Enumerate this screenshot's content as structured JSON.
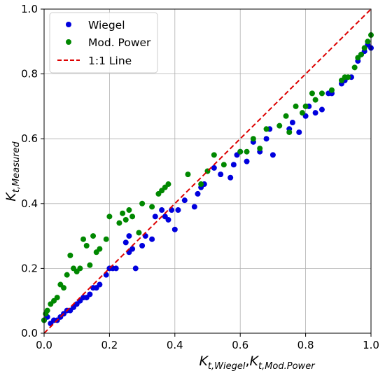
{
  "chart_data": {
    "type": "scatter",
    "title": "",
    "xlabel": {
      "parts": [
        {
          "main": "K",
          "sub": "t,Wiegel"
        },
        {
          "sep": ","
        },
        {
          "main": "K",
          "sub": "t,Mod.Power"
        }
      ]
    },
    "ylabel": {
      "main": "K",
      "sub": "t,Measured"
    },
    "xlim": [
      0,
      1
    ],
    "ylim": [
      0,
      1
    ],
    "xticks": [
      "0.0",
      "0.2",
      "0.4",
      "0.6",
      "0.8",
      "1.0"
    ],
    "yticks": [
      "0.0",
      "0.2",
      "0.4",
      "0.6",
      "0.8",
      "1.0"
    ],
    "grid": true,
    "legend": {
      "placement": "top-left",
      "entries": [
        {
          "label": "Wiegel",
          "series": 0
        },
        {
          "label": "Mod. Power",
          "series": 1
        },
        {
          "label": "1:1 Line",
          "series": 2
        }
      ]
    },
    "series": [
      {
        "name": "Wiegel",
        "kind": "scatter",
        "color": "#0000dd",
        "points": [
          [
            0.0,
            0.04
          ],
          [
            0.01,
            0.05
          ],
          [
            0.02,
            0.03
          ],
          [
            0.03,
            0.04
          ],
          [
            0.04,
            0.04
          ],
          [
            0.05,
            0.05
          ],
          [
            0.06,
            0.06
          ],
          [
            0.07,
            0.07
          ],
          [
            0.08,
            0.07
          ],
          [
            0.09,
            0.08
          ],
          [
            0.1,
            0.09
          ],
          [
            0.11,
            0.1
          ],
          [
            0.12,
            0.11
          ],
          [
            0.13,
            0.11
          ],
          [
            0.14,
            0.12
          ],
          [
            0.15,
            0.14
          ],
          [
            0.16,
            0.14
          ],
          [
            0.17,
            0.15
          ],
          [
            0.19,
            0.18
          ],
          [
            0.2,
            0.2
          ],
          [
            0.21,
            0.2
          ],
          [
            0.22,
            0.2
          ],
          [
            0.25,
            0.28
          ],
          [
            0.26,
            0.3
          ],
          [
            0.26,
            0.25
          ],
          [
            0.27,
            0.26
          ],
          [
            0.28,
            0.2
          ],
          [
            0.3,
            0.27
          ],
          [
            0.31,
            0.3
          ],
          [
            0.33,
            0.29
          ],
          [
            0.34,
            0.36
          ],
          [
            0.36,
            0.38
          ],
          [
            0.37,
            0.36
          ],
          [
            0.38,
            0.35
          ],
          [
            0.39,
            0.38
          ],
          [
            0.4,
            0.32
          ],
          [
            0.41,
            0.38
          ],
          [
            0.43,
            0.41
          ],
          [
            0.46,
            0.39
          ],
          [
            0.47,
            0.43
          ],
          [
            0.48,
            0.45
          ],
          [
            0.49,
            0.46
          ],
          [
            0.52,
            0.51
          ],
          [
            0.54,
            0.49
          ],
          [
            0.57,
            0.48
          ],
          [
            0.58,
            0.52
          ],
          [
            0.59,
            0.55
          ],
          [
            0.6,
            0.56
          ],
          [
            0.62,
            0.53
          ],
          [
            0.64,
            0.59
          ],
          [
            0.66,
            0.56
          ],
          [
            0.68,
            0.6
          ],
          [
            0.69,
            0.63
          ],
          [
            0.7,
            0.55
          ],
          [
            0.75,
            0.63
          ],
          [
            0.76,
            0.65
          ],
          [
            0.78,
            0.62
          ],
          [
            0.8,
            0.67
          ],
          [
            0.81,
            0.7
          ],
          [
            0.83,
            0.68
          ],
          [
            0.85,
            0.69
          ],
          [
            0.87,
            0.74
          ],
          [
            0.88,
            0.74
          ],
          [
            0.91,
            0.77
          ],
          [
            0.92,
            0.78
          ],
          [
            0.94,
            0.79
          ],
          [
            0.96,
            0.84
          ],
          [
            0.97,
            0.86
          ],
          [
            0.98,
            0.87
          ],
          [
            0.99,
            0.89
          ],
          [
            1.0,
            0.88
          ]
        ]
      },
      {
        "name": "Mod. Power",
        "kind": "scatter",
        "color": "#008800",
        "points": [
          [
            0.0,
            0.04
          ],
          [
            0.005,
            0.06
          ],
          [
            0.01,
            0.07
          ],
          [
            0.02,
            0.09
          ],
          [
            0.03,
            0.1
          ],
          [
            0.04,
            0.11
          ],
          [
            0.05,
            0.15
          ],
          [
            0.06,
            0.14
          ],
          [
            0.07,
            0.18
          ],
          [
            0.08,
            0.24
          ],
          [
            0.09,
            0.2
          ],
          [
            0.1,
            0.19
          ],
          [
            0.11,
            0.2
          ],
          [
            0.12,
            0.29
          ],
          [
            0.13,
            0.27
          ],
          [
            0.14,
            0.21
          ],
          [
            0.15,
            0.3
          ],
          [
            0.16,
            0.25
          ],
          [
            0.17,
            0.26
          ],
          [
            0.19,
            0.29
          ],
          [
            0.2,
            0.36
          ],
          [
            0.23,
            0.34
          ],
          [
            0.24,
            0.37
          ],
          [
            0.25,
            0.35
          ],
          [
            0.26,
            0.38
          ],
          [
            0.27,
            0.36
          ],
          [
            0.29,
            0.31
          ],
          [
            0.3,
            0.4
          ],
          [
            0.33,
            0.39
          ],
          [
            0.35,
            0.43
          ],
          [
            0.36,
            0.44
          ],
          [
            0.37,
            0.45
          ],
          [
            0.38,
            0.46
          ],
          [
            0.44,
            0.49
          ],
          [
            0.48,
            0.46
          ],
          [
            0.5,
            0.5
          ],
          [
            0.52,
            0.55
          ],
          [
            0.55,
            0.52
          ],
          [
            0.6,
            0.56
          ],
          [
            0.62,
            0.56
          ],
          [
            0.64,
            0.6
          ],
          [
            0.66,
            0.57
          ],
          [
            0.68,
            0.63
          ],
          [
            0.72,
            0.64
          ],
          [
            0.74,
            0.67
          ],
          [
            0.75,
            0.62
          ],
          [
            0.77,
            0.7
          ],
          [
            0.79,
            0.68
          ],
          [
            0.8,
            0.7
          ],
          [
            0.82,
            0.74
          ],
          [
            0.83,
            0.72
          ],
          [
            0.85,
            0.74
          ],
          [
            0.88,
            0.75
          ],
          [
            0.91,
            0.78
          ],
          [
            0.92,
            0.79
          ],
          [
            0.93,
            0.79
          ],
          [
            0.95,
            0.82
          ],
          [
            0.96,
            0.85
          ],
          [
            0.97,
            0.86
          ],
          [
            0.98,
            0.88
          ],
          [
            0.99,
            0.9
          ],
          [
            1.0,
            0.92
          ]
        ]
      },
      {
        "name": "1:1 Line",
        "kind": "line",
        "color": "#dd0000",
        "dashed": true,
        "points": [
          [
            0,
            0
          ],
          [
            1,
            1
          ]
        ]
      }
    ]
  }
}
